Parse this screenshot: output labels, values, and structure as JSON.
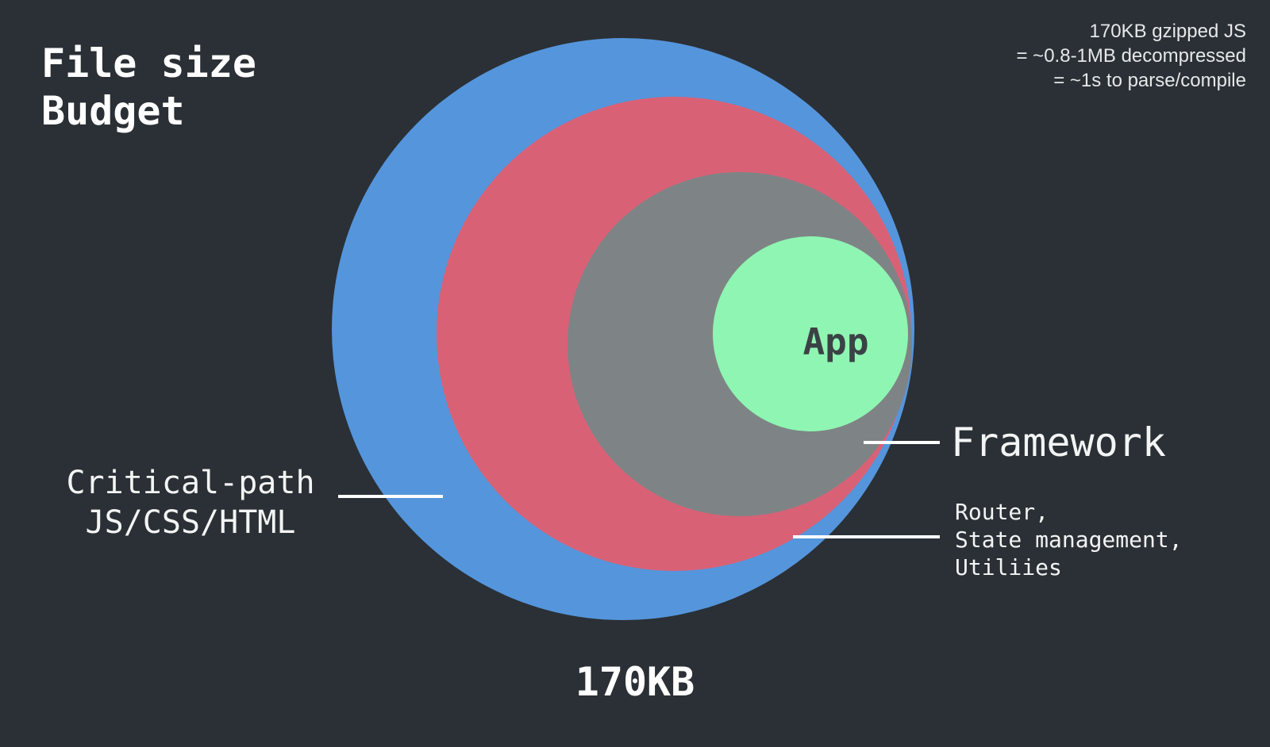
{
  "title": {
    "line1": "File size",
    "line2": "Budget"
  },
  "note": {
    "line1": "170KB gzipped JS",
    "line2": "= ~0.8-1MB decompressed",
    "line3": "= ~1s to parse/compile"
  },
  "circles": [
    {
      "name": "critical-path",
      "color": "#5595dc"
    },
    {
      "name": "router-state-utilities",
      "color": "#d96176"
    },
    {
      "name": "framework",
      "color": "#7e8486"
    },
    {
      "name": "app",
      "color": "#8ff5b2"
    }
  ],
  "labels": {
    "critical_line1": "Critical-path",
    "critical_line2": "JS/CSS/HTML",
    "framework": "Framework",
    "router_line1": "Router,",
    "router_line2": "State management,",
    "router_line3": "Utiliies",
    "app": "App",
    "total": "170KB"
  }
}
